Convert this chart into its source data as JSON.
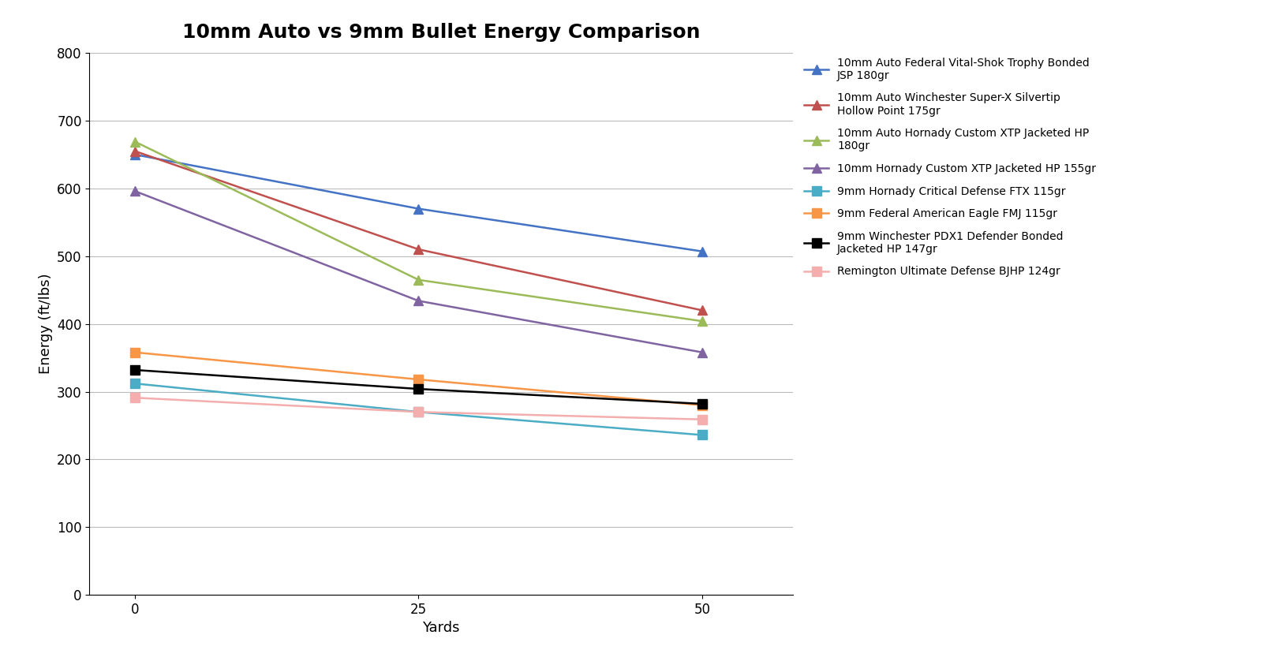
{
  "title": "10mm Auto vs 9mm Bullet Energy Comparison",
  "xlabel": "Yards",
  "ylabel": "Energy (ft/lbs)",
  "x_values": [
    0,
    25,
    50
  ],
  "series": [
    {
      "label": "10mm Auto Federal Vital-Shok Trophy Bonded\nJSP 180gr",
      "values": [
        650,
        570,
        507
      ],
      "color": "#4472C4",
      "marker": "^",
      "linestyle": "-"
    },
    {
      "label": "10mm Auto Winchester Super-X Silvertip\nHollow Point 175gr",
      "values": [
        655,
        510,
        420
      ],
      "color": "#C0504D",
      "marker": "^",
      "linestyle": "-"
    },
    {
      "label": "10mm Auto Hornady Custom XTP Jacketed HP\n180gr",
      "values": [
        669,
        465,
        404
      ],
      "color": "#9BBB59",
      "marker": "^",
      "linestyle": "-"
    },
    {
      "label": "10mm Hornady Custom XTP Jacketed HP 155gr",
      "values": [
        596,
        434,
        358
      ],
      "color": "#8064A2",
      "marker": "^",
      "linestyle": "-"
    },
    {
      "label": "9mm Hornady Critical Defense FTX 115gr",
      "values": [
        312,
        270,
        236
      ],
      "color": "#4BACC6",
      "marker": "s",
      "linestyle": "-"
    },
    {
      "label": "9mm Federal American Eagle FMJ 115gr",
      "values": [
        358,
        318,
        280
      ],
      "color": "#F79646",
      "marker": "s",
      "linestyle": "-"
    },
    {
      "label": "9mm Winchester PDX1 Defender Bonded\nJacketed HP 147gr",
      "values": [
        332,
        304,
        282
      ],
      "color": "#000000",
      "marker": "s",
      "linestyle": "-"
    },
    {
      "label": "Remington Ultimate Defense BJHP 124gr",
      "values": [
        291,
        270,
        259
      ],
      "color": "#F4AEAE",
      "marker": "s",
      "linestyle": "-"
    }
  ],
  "ylim": [
    0,
    800
  ],
  "yticks": [
    0,
    100,
    200,
    300,
    400,
    500,
    600,
    700,
    800
  ],
  "xticks": [
    0,
    25,
    50
  ],
  "title_fontsize": 18,
  "axis_label_fontsize": 13,
  "tick_fontsize": 12,
  "legend_fontsize": 10,
  "background_color": "#FFFFFF",
  "grid_color": "#BBBBBB",
  "marker_size": 8,
  "linewidth": 1.8,
  "xlim_left": -4,
  "xlim_right": 58
}
